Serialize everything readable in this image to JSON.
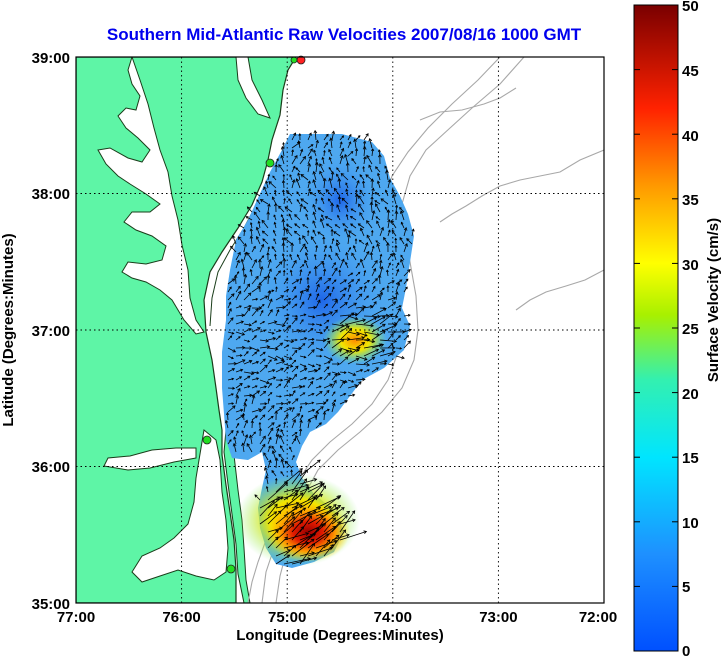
{
  "title": "Southern Mid-Atlantic Raw Velocities 2007/08/16 1000 GMT",
  "xlabel": "Longitude (Degrees:Minutes)",
  "ylabel": "Latitude (Degrees:Minutes)",
  "colorbar_label": "Surface Velocity (cm/s)",
  "x_ticks": [
    "77:00",
    "76:00",
    "75:00",
    "74:00",
    "73:00",
    "72:00"
  ],
  "y_ticks": [
    "39:00",
    "38:00",
    "37:00",
    "36:00",
    "35:00"
  ],
  "colorbar_ticks": [
    "50",
    "45",
    "40",
    "35",
    "30",
    "25",
    "20",
    "15",
    "10",
    "5",
    "0"
  ],
  "colors": {
    "land": "#5ef5a6",
    "coastline": "#1a3d1a",
    "bathymetry": "#a8a8a8",
    "title": "#0000ee",
    "station": "#22dd22"
  },
  "chart_data": {
    "type": "heatmap",
    "title": "Southern Mid-Atlantic Raw Velocities 2007/08/16 1000 GMT",
    "xlabel": "Longitude (Degrees:Minutes)",
    "ylabel": "Latitude (Degrees:Minutes)",
    "xlim": [
      -77,
      -72
    ],
    "ylim": [
      35,
      39
    ],
    "colorbar": {
      "label": "Surface Velocity (cm/s)",
      "range": [
        0,
        50
      ],
      "colormap": "jet"
    },
    "grid": true,
    "stations": [
      {
        "lon": -74.87,
        "lat": 38.98,
        "color": "#ff2222"
      },
      {
        "lon": -74.93,
        "lat": 38.98,
        "color": "#22dd22"
      },
      {
        "lon": -75.15,
        "lat": 38.22,
        "color": "#22dd22"
      },
      {
        "lon": -75.5,
        "lat": 36.17,
        "color": "#22dd22"
      },
      {
        "lon": -75.52,
        "lat": 35.27,
        "color": "#22dd22"
      }
    ]
  }
}
